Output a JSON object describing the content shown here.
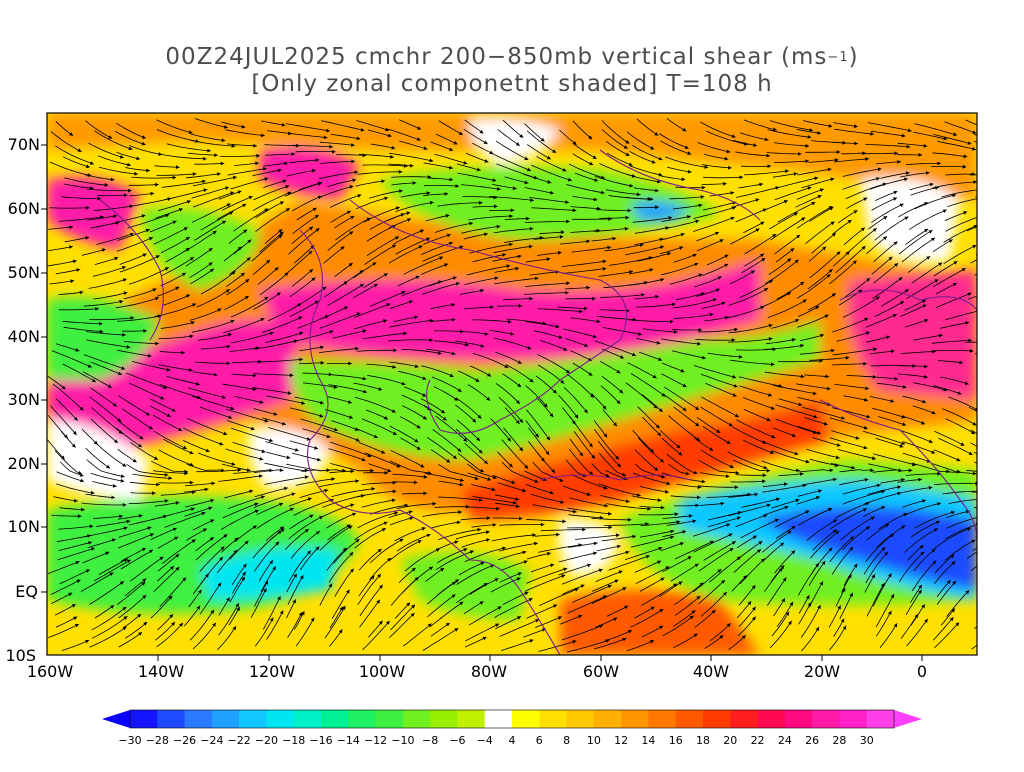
{
  "title": {
    "line1_prefix": "00Z24JUL2025 cmchr 200−850mb vertical shear (ms",
    "line1_sup": "−1",
    "line1_suffix": ")",
    "line2": "[Only zonal componetnt shaded] T=108 h"
  },
  "axes": {
    "lat_labels": [
      "70N",
      "60N",
      "50N",
      "40N",
      "30N",
      "20N",
      "10N",
      "EQ",
      "10S"
    ],
    "lon_labels": [
      "160W",
      "140W",
      "120W",
      "100W",
      "80W",
      "60W",
      "40W",
      "20W",
      "0"
    ]
  },
  "colorbar": {
    "labels": [
      "−30",
      "−28",
      "−26",
      "−24",
      "−22",
      "−20",
      "−18",
      "−16",
      "−14",
      "−12",
      "−10",
      "−8",
      "−6",
      "−4",
      "4",
      "6",
      "8",
      "10",
      "12",
      "14",
      "16",
      "18",
      "20",
      "22",
      "24",
      "26",
      "28",
      "30"
    ],
    "colors": [
      "#1414ff",
      "#1e4bff",
      "#2a7aff",
      "#20a0ff",
      "#10c8ff",
      "#00e6f0",
      "#00f0c8",
      "#00f096",
      "#20f064",
      "#40f040",
      "#70f020",
      "#98f000",
      "#c0f000",
      "#ffffff",
      "#ffff00",
      "#ffe000",
      "#ffc800",
      "#ffb000",
      "#ff9600",
      "#ff7800",
      "#ff5a00",
      "#ff3c00",
      "#ff1e1e",
      "#ff0a50",
      "#ff0a80",
      "#ff1aa8",
      "#ff20c8",
      "#ff40e8"
    ]
  },
  "colors": {
    "low_end_arrow": "#0a00ff",
    "high_end_arrow": "#ff40ff",
    "coastline": "#7a1a8c",
    "streamline": "#000000"
  }
}
